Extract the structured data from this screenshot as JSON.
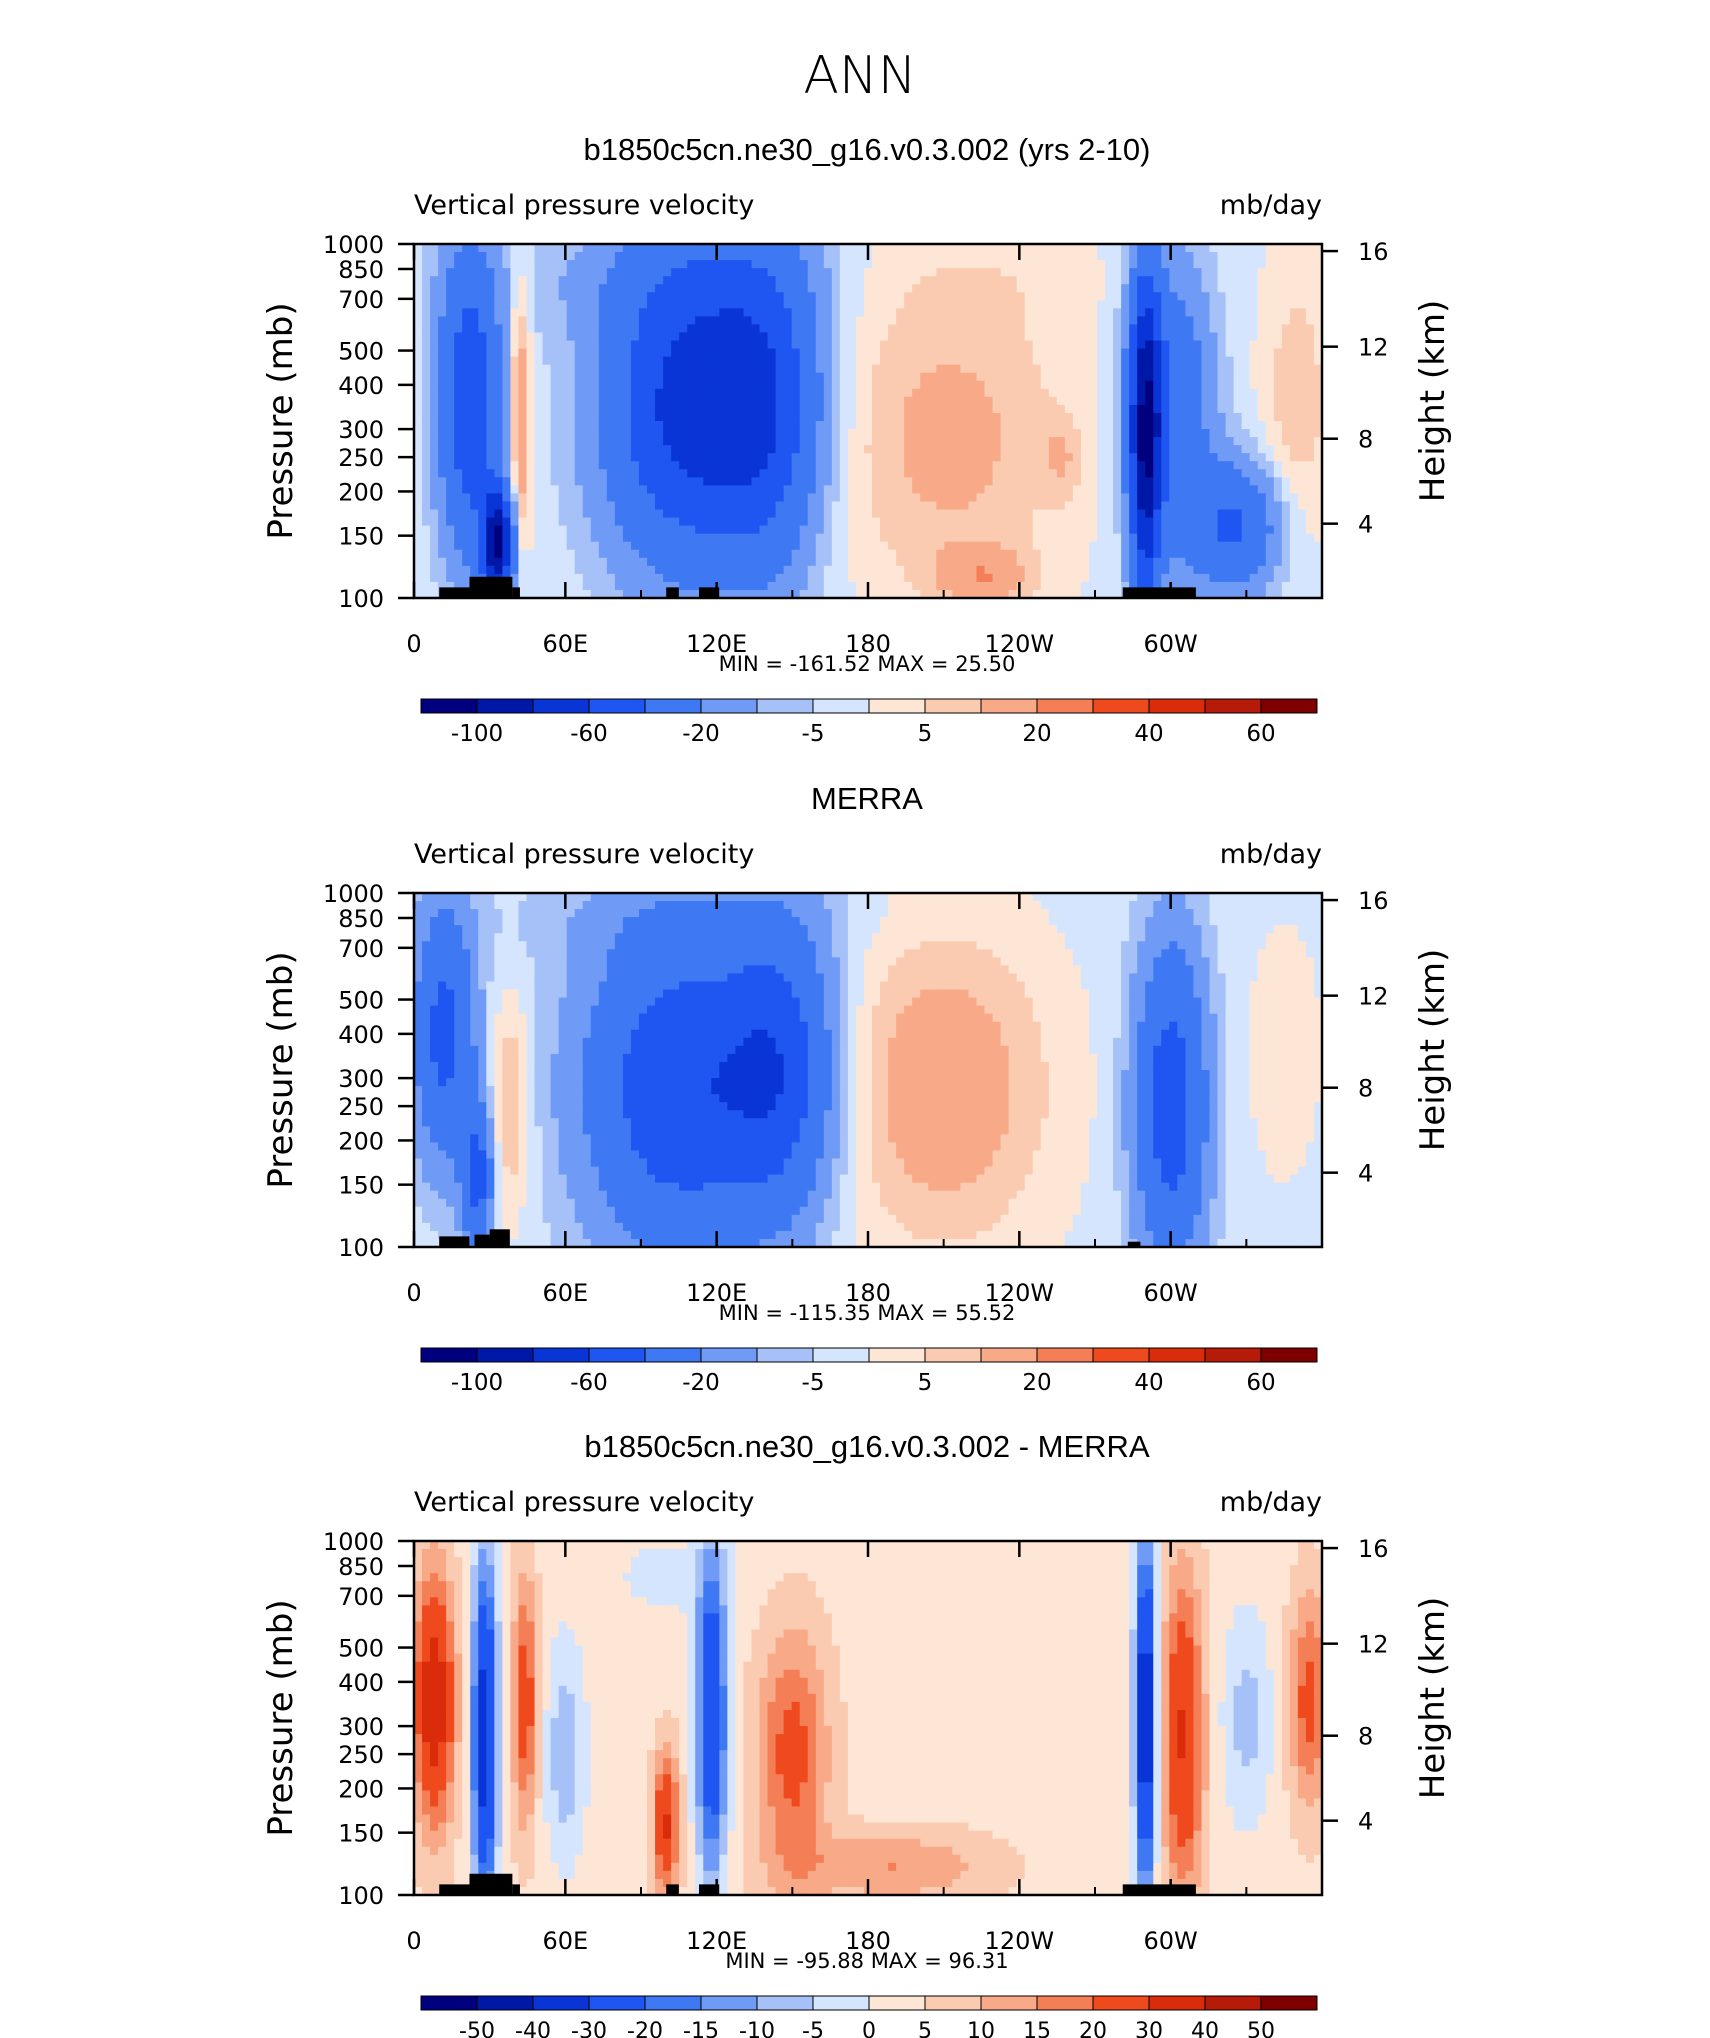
{
  "figure_title": "ANN",
  "colors": {
    "neg": [
      "#00007f",
      "#0018a8",
      "#0a35d6",
      "#1f55f0",
      "#3e78f2",
      "#6f9af5",
      "#a6c1f8",
      "#d4e5fd"
    ],
    "pos": [
      "#fde6d5",
      "#fbcbb1",
      "#f8a987",
      "#f47e55",
      "#ef4a1e",
      "#da2c0a",
      "#b61a08",
      "#7f0000"
    ],
    "land": "#000000"
  },
  "chart_data": [
    {
      "type": "heatmap",
      "title": "b1850c5cn.ne30_g16.v0.3.002 (yrs 2-10)",
      "left_label": "Vertical pressure velocity",
      "right_label": "mb/day",
      "ylabel": "Pressure (mb)",
      "ylabel_right": "Height (km)",
      "x_ticks": [
        "0",
        "60E",
        "120E",
        "180",
        "120W",
        "60W"
      ],
      "y_ticks": [
        "100",
        "150",
        "200",
        "250",
        "300",
        "400",
        "500",
        "700",
        "850",
        "1000"
      ],
      "height_ticks": [
        "16",
        "12",
        "8",
        "4"
      ],
      "min_label": "MIN = -161.52   MAX =   25.50",
      "colorbar_labels": [
        "-100",
        "-60",
        "-20",
        "-5",
        "5",
        "20",
        "40",
        "60"
      ]
    },
    {
      "type": "heatmap",
      "title": "MERRA",
      "left_label": "Vertical pressure velocity",
      "right_label": "mb/day",
      "ylabel": "Pressure (mb)",
      "ylabel_right": "Height (km)",
      "x_ticks": [
        "0",
        "60E",
        "120E",
        "180",
        "120W",
        "60W"
      ],
      "y_ticks": [
        "100",
        "150",
        "200",
        "250",
        "300",
        "400",
        "500",
        "700",
        "850",
        "1000"
      ],
      "height_ticks": [
        "16",
        "12",
        "8",
        "4"
      ],
      "min_label": "MIN = -115.35   MAX =   55.52",
      "colorbar_labels": [
        "-100",
        "-60",
        "-20",
        "-5",
        "5",
        "20",
        "40",
        "60"
      ]
    },
    {
      "type": "heatmap",
      "title": "b1850c5cn.ne30_g16.v0.3.002 - MERRA",
      "left_label": "Vertical pressure velocity",
      "right_label": "mb/day",
      "ylabel": "Pressure (mb)",
      "ylabel_right": "Height (km)",
      "x_ticks": [
        "0",
        "60E",
        "120E",
        "180",
        "120W",
        "60W"
      ],
      "y_ticks": [
        "100",
        "150",
        "200",
        "250",
        "300",
        "400",
        "500",
        "700",
        "850",
        "1000"
      ],
      "height_ticks": [
        "16",
        "12",
        "8",
        "4"
      ],
      "min_label": "MIN = -95.88   MAX =   96.31",
      "colorbar_labels": [
        "-50",
        "-40",
        "-30",
        "-20",
        "-15",
        "-10",
        "-5",
        "0",
        "5",
        "10",
        "15",
        "20",
        "30",
        "40",
        "50"
      ]
    }
  ]
}
